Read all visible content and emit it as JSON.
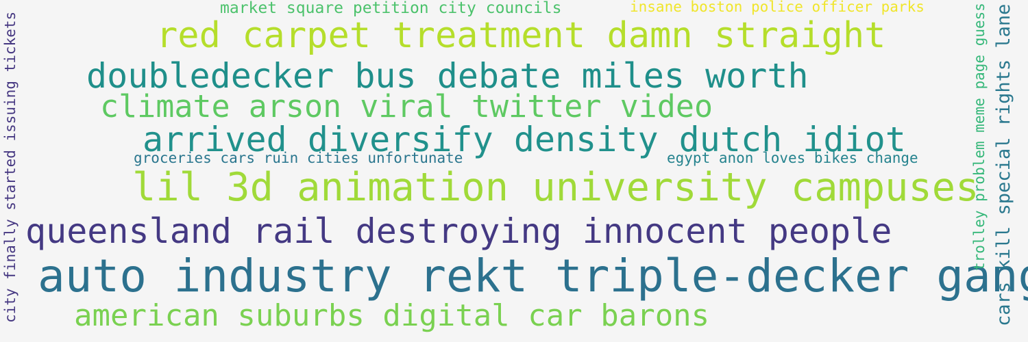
{
  "background_color": "#f5f5f5",
  "phrases": [
    {
      "text": "market square petition city councils",
      "color": "#4cc26c",
      "orientation": "horizontal"
    },
    {
      "text": "insane boston police officer parks",
      "color": "#f0e52a",
      "orientation": "horizontal"
    },
    {
      "text": "red carpet treatment damn straight",
      "color": "#b5de2b",
      "orientation": "horizontal"
    },
    {
      "text": "doubledecker bus debate miles worth",
      "color": "#1f8f8a",
      "orientation": "horizontal"
    },
    {
      "text": "climate arson viral twitter video",
      "color": "#5ec962",
      "orientation": "horizontal"
    },
    {
      "text": "arrived diversify density dutch idiot",
      "color": "#21918c",
      "orientation": "horizontal"
    },
    {
      "text": "groceries cars ruin cities unfortunate",
      "color": "#2a768e",
      "orientation": "horizontal"
    },
    {
      "text": "egypt anon loves bikes change",
      "color": "#25838e",
      "orientation": "horizontal"
    },
    {
      "text": "lil 3d animation university campuses",
      "color": "#a0da39",
      "orientation": "horizontal"
    },
    {
      "text": "queensland rail destroying innocent people",
      "color": "#443983",
      "orientation": "horizontal"
    },
    {
      "text": "auto industry rekt triple-decker gang",
      "color": "#2c718e",
      "orientation": "horizontal"
    },
    {
      "text": "american suburbs digital car barons",
      "color": "#7ad151",
      "orientation": "horizontal"
    },
    {
      "text": "city finally started issuing tickets",
      "color": "#453781",
      "orientation": "vertical"
    },
    {
      "text": "trolley problem meme page guess",
      "color": "#35b779",
      "orientation": "vertical"
    },
    {
      "text": "cars kill special rights lane",
      "color": "#2a788e",
      "orientation": "vertical"
    }
  ]
}
